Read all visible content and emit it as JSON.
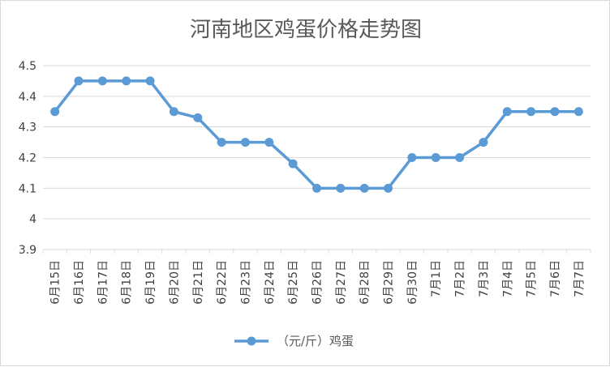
{
  "chart_data": {
    "type": "line",
    "title": "河南地区鸡蛋价格走势图",
    "xlabel": "",
    "ylabel": "",
    "ylim": [
      3.9,
      4.5
    ],
    "yticks": [
      "3.9",
      "4",
      "4.1",
      "4.2",
      "4.3",
      "4.4",
      "4.5"
    ],
    "grid": true,
    "legend_position": "bottom",
    "categories": [
      "6月15日",
      "6月16日",
      "6月17日",
      "6月18日",
      "6月19日",
      "6月20日",
      "6月21日",
      "6月22日",
      "6月23日",
      "6月24日",
      "6月25日",
      "6月26日",
      "6月27日",
      "6月28日",
      "6月29日",
      "6月30日",
      "7月1日",
      "7月2日",
      "7月3日",
      "7月4日",
      "7月5日",
      "7月6日",
      "7月7日"
    ],
    "series": [
      {
        "name": "（元/斤）鸡蛋",
        "color": "#5b9bd5",
        "values": [
          4.35,
          4.45,
          4.45,
          4.45,
          4.45,
          4.35,
          4.33,
          4.25,
          4.25,
          4.25,
          4.18,
          4.1,
          4.1,
          4.1,
          4.1,
          4.2,
          4.2,
          4.2,
          4.25,
          4.35,
          4.35,
          4.35,
          4.35
        ]
      }
    ]
  }
}
